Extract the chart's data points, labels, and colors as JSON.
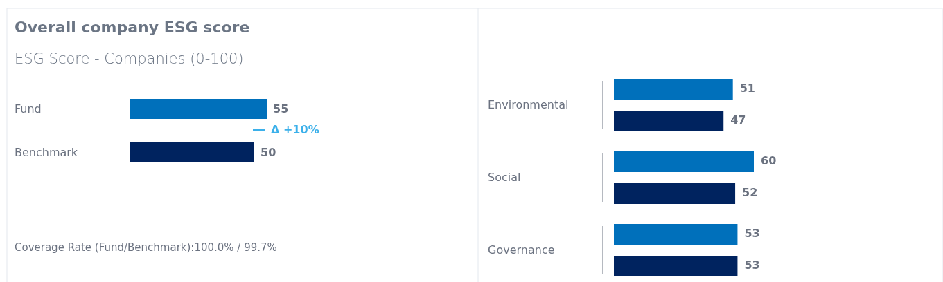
{
  "chart_data": [
    {
      "type": "bar",
      "orientation": "horizontal",
      "title": "Overall company ESG score",
      "subtitle": "ESG Score - Companies (0-100)",
      "categories": [
        "Fund",
        "Benchmark"
      ],
      "values": [
        55,
        50
      ],
      "colors": [
        "#0070bb",
        "#00235f"
      ],
      "data_labels": true,
      "annotations": [
        "Δ +10%",
        "Coverage Rate (Fund/Benchmark):100.0% / 99.7%"
      ]
    },
    {
      "type": "bar",
      "orientation": "horizontal",
      "categories": [
        "Environmental",
        "Social",
        "Governance"
      ],
      "data_labels": true,
      "series": [
        {
          "color": "#0070bb",
          "values": [
            51,
            60,
            53
          ]
        },
        {
          "color": "#00235f",
          "values": [
            47,
            52,
            53
          ]
        }
      ]
    }
  ]
}
